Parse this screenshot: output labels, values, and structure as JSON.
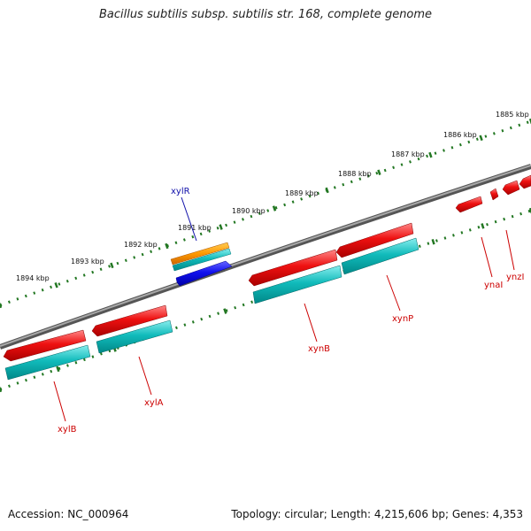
{
  "title": "Bacillus subtilis subsp. subtilis str. 168, complete genome",
  "footer": {
    "accession": "Accession: NC_000964",
    "summary": "Topology: circular; Length: 4,215,606 bp; Genes: 4,353"
  },
  "scale_labels": [
    "1885 kbp",
    "1886 kbp",
    "1887 kbp",
    "1888 kbp",
    "1889 kbp",
    "1890 kbp",
    "1891 kbp",
    "1892 kbp",
    "1893 kbp",
    "1894 kbp"
  ],
  "genes": [
    "xylR",
    "xylB",
    "xylA",
    "xynB",
    "xynP",
    "ynaI",
    "ynzI"
  ],
  "colors": {
    "backbone": "#808080",
    "gene_red": "#ee1111",
    "cds_cyan": "#11bbbb",
    "reverse_blue": "#1111ee",
    "orange": "#ff9900",
    "tick_green": "#227722",
    "label_red": "#cc0000",
    "label_blue": "#1111aa"
  }
}
